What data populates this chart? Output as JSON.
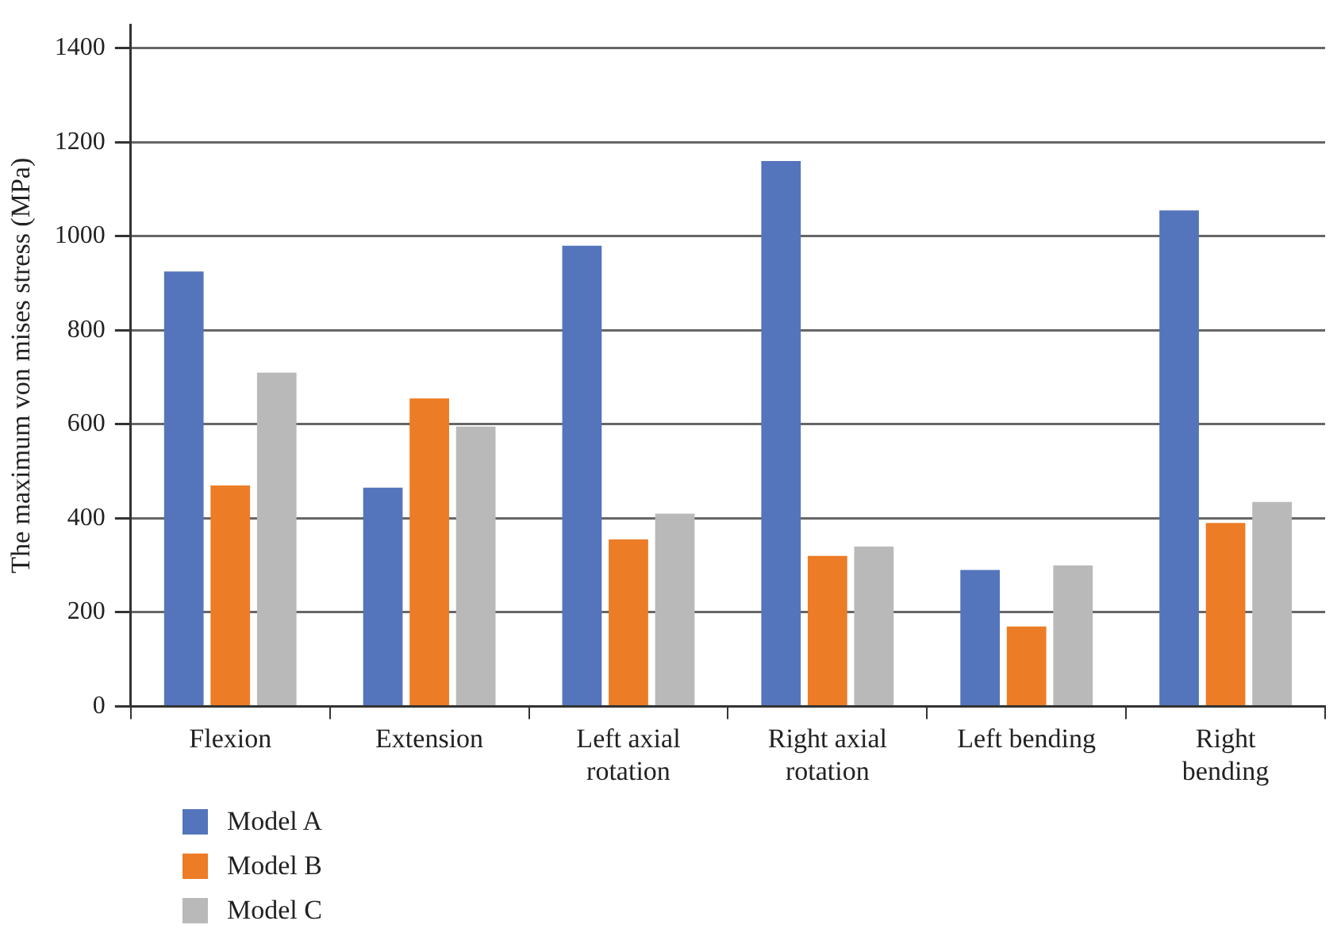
{
  "chart_data": {
    "type": "bar",
    "ylabel": "The maximum von mises stress (MPa)",
    "categories": [
      "Flexion",
      "Extension",
      "Left axial rotation",
      "Right axial rotation",
      "Left bending",
      "Right bending"
    ],
    "series": [
      {
        "name": "Model A",
        "color": "#5475bb",
        "values": [
          925,
          465,
          980,
          1160,
          290,
          1055
        ]
      },
      {
        "name": "Model B",
        "color": "#ec7c26",
        "values": [
          470,
          655,
          355,
          320,
          170,
          390
        ]
      },
      {
        "name": "Model C",
        "color": "#b9b9b9",
        "values": [
          710,
          595,
          410,
          340,
          300,
          435
        ]
      }
    ],
    "ylim": [
      0,
      1450
    ],
    "yticks": [
      0,
      200,
      400,
      600,
      800,
      1000,
      1200,
      1400
    ],
    "grid": "y",
    "legend": "bottom left"
  }
}
